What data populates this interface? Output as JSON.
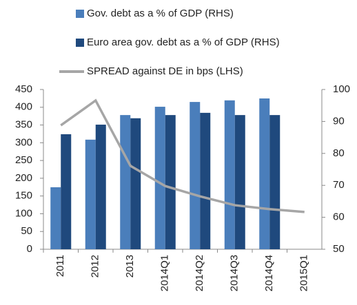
{
  "chart_data": {
    "type": "bar-line",
    "categories": [
      "2011",
      "2012",
      "2013",
      "2014Q1",
      "2014Q2",
      "2014Q3",
      "2014Q4",
      "2015Q1"
    ],
    "series": [
      {
        "name": "Gov. debt as a % of GDP (RHS)",
        "color": "#4a7ebb",
        "type": "bar",
        "axis": "y2",
        "values": [
          69.4,
          84.3,
          92.0,
          94.6,
          96.1,
          96.6,
          97.2,
          null
        ]
      },
      {
        "name": "Euro area gov. debt as a % of GDP (RHS)",
        "color": "#1f497d",
        "type": "bar",
        "axis": "y2",
        "values": [
          86.0,
          89.0,
          91.0,
          92.0,
          92.7,
          92.0,
          92.0,
          null
        ]
      },
      {
        "name": "SPREAD against DE in bps (LHS)",
        "color": "#a6a6a6",
        "type": "line",
        "axis": "y",
        "values": [
          349,
          419,
          235,
          178,
          149,
          124,
          113,
          105
        ]
      }
    ],
    "ylim": [
      0,
      450
    ],
    "yticks": [
      0,
      50,
      100,
      150,
      200,
      250,
      300,
      350,
      400,
      450
    ],
    "y2lim": [
      50,
      100
    ],
    "y2ticks": [
      50,
      60,
      70,
      80,
      90,
      100
    ]
  }
}
